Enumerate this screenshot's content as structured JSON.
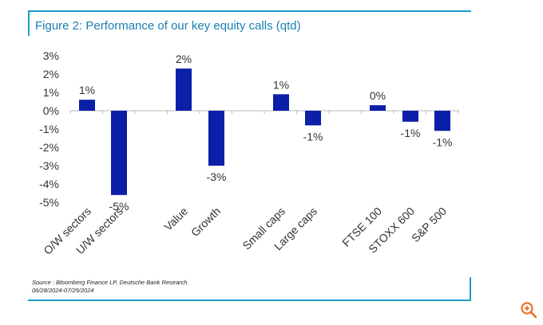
{
  "title": "Figure 2: Performance of our key equity calls (qtd)",
  "source_line1": "Source : Bloomberg Finance LP, Deutsche Bank Research",
  "source_line2": "06/28/2024-07/25/2024",
  "zoom_icon": "zoom-in-icon",
  "colors": {
    "bar": "#0b1fa8",
    "accent": "#1a9fc7",
    "zoom": "#e8702a"
  },
  "chart_data": {
    "type": "bar",
    "title": "Figure 2: Performance of our key equity calls (qtd)",
    "categories": [
      "O/W sectors",
      "U/W sectors",
      "Value",
      "Growth",
      "Small caps",
      "Large caps",
      "FTSE 100",
      "STOXX 600",
      "S&P 500"
    ],
    "values": [
      0.6,
      -4.6,
      2.3,
      -3.0,
      0.9,
      -0.8,
      0.3,
      -0.6,
      -1.1
    ],
    "data_labels": [
      "1%",
      "-5%",
      "2%",
      "-3%",
      "1%",
      "-1%",
      "0%",
      "-1%",
      "-1%"
    ],
    "ylim": [
      -5,
      3
    ],
    "yticks": [
      3,
      2,
      1,
      0,
      -1,
      -2,
      -3,
      -4,
      -5
    ],
    "ytick_labels": [
      "3%",
      "2%",
      "1%",
      "0%",
      "-1%",
      "-2%",
      "-3%",
      "-4%",
      "-5%"
    ],
    "xlabel": "",
    "ylabel": "",
    "grid": false
  }
}
